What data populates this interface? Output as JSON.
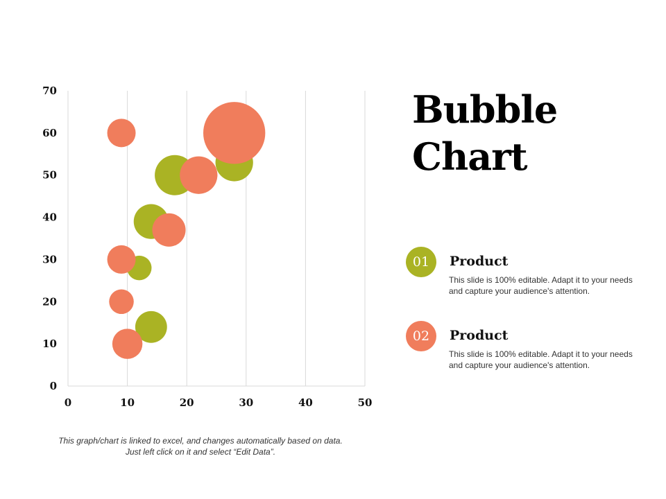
{
  "chart_data": {
    "type": "scatter",
    "title": "",
    "xlabel": "",
    "ylabel": "",
    "xlim": [
      0,
      50
    ],
    "ylim": [
      0,
      70
    ],
    "x_ticks": [
      "0",
      "10",
      "20",
      "30",
      "40",
      "50"
    ],
    "y_ticks": [
      "0",
      "10",
      "20",
      "30",
      "40",
      "50",
      "60",
      "70"
    ],
    "grid": "vertical",
    "series": [
      {
        "color": "#aab324",
        "points": [
          {
            "x": 18,
            "y": 50,
            "size": 8
          },
          {
            "x": 28,
            "y": 53,
            "size": 7
          },
          {
            "x": 14,
            "y": 39,
            "size": 6
          },
          {
            "x": 12,
            "y": 28,
            "size": 3
          },
          {
            "x": 14,
            "y": 14,
            "size": 5
          }
        ]
      },
      {
        "color": "#f07d5c",
        "points": [
          {
            "x": 9,
            "y": 60,
            "size": 4
          },
          {
            "x": 28,
            "y": 60,
            "size": 19
          },
          {
            "x": 22,
            "y": 50,
            "size": 7
          },
          {
            "x": 17,
            "y": 37,
            "size": 5.5
          },
          {
            "x": 9,
            "y": 30,
            "size": 4
          },
          {
            "x": 9,
            "y": 20,
            "size": 3
          },
          {
            "x": 10,
            "y": 10,
            "size": 4.5
          }
        ]
      }
    ]
  },
  "slide": {
    "title_line1": "Bubble",
    "title_line2": "Chart"
  },
  "legend": {
    "items": [
      {
        "number": "01",
        "title": "Product",
        "description": "This slide is 100% editable. Adapt it to your needs and capture your audience's attention.",
        "color": "#aab324"
      },
      {
        "number": "02",
        "title": "Product",
        "description": "This slide is 100% editable. Adapt it to your needs and capture your audience's attention.",
        "color": "#f07d5c"
      }
    ]
  },
  "footnote": {
    "line1": "This graph/chart is linked to excel, and changes automatically based on data.",
    "line2": "Just left click on it and select “Edit Data”."
  }
}
